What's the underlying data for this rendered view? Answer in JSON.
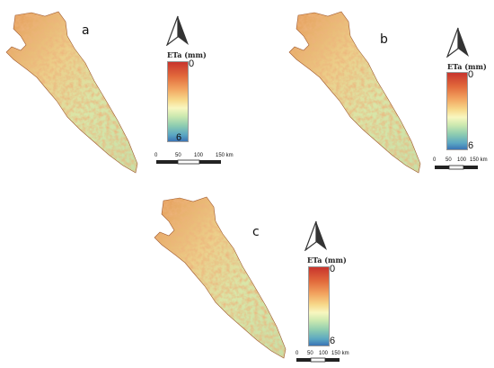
{
  "panels": [
    {
      "id": "a",
      "label": "a",
      "legend_title": "ETa (mm)",
      "legend_max": "0",
      "legend_min": "6",
      "scale_ticks": [
        "0",
        "50",
        "100",
        "150 km"
      ]
    },
    {
      "id": "b",
      "label": "b",
      "legend_title": "ETa (mm)",
      "legend_max": "0",
      "legend_min": "6",
      "scale_ticks": [
        "0",
        "50",
        "100",
        "150 km"
      ]
    },
    {
      "id": "c",
      "label": "c",
      "legend_title": "ETa (mm)",
      "legend_max": "0",
      "legend_min": "6",
      "scale_ticks": [
        "0",
        "50",
        "100",
        "150 km"
      ]
    }
  ],
  "colors": {
    "ramp_high": "#c8342c",
    "ramp_mid": "#f8f7c0",
    "ramp_low": "#3b74b5",
    "land_base": "#e9d99a"
  },
  "icons": {
    "north_arrow": "north-arrow-icon"
  }
}
